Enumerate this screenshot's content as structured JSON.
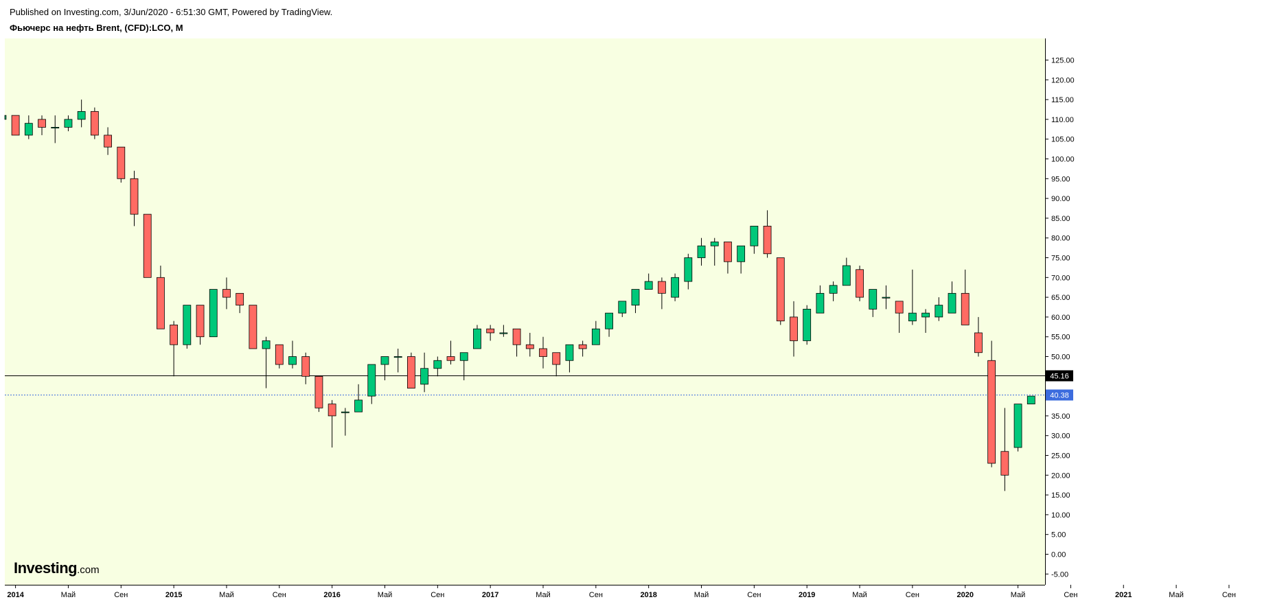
{
  "header": {
    "published": "Published on Investing.com, 3/Jun/2020 - 6:51:30 GMT, Powered by TradingView.",
    "instrument": "Фьючерс на нефть Brent, (CFD):LCO, M"
  },
  "logo": {
    "main": "Investing",
    "suffix": ".com"
  },
  "colors": {
    "background": "#f8ffe2",
    "up": "#00c87a",
    "down": "#ff6b63",
    "wick": "#000000",
    "hline_black": "#000000",
    "hline_blue": "#3c6cde"
  },
  "chart_data": {
    "type": "candlestick",
    "interval": "M",
    "ylim": [
      -7,
      133
    ],
    "x_tick_labels": [
      "2014",
      "Май",
      "Сен",
      "2015",
      "Май",
      "Сен",
      "2016",
      "Май",
      "Сен",
      "2017",
      "Май",
      "Сен",
      "2018",
      "Май",
      "Сен",
      "2019",
      "Май",
      "Сен",
      "2020",
      "Май",
      "Сен",
      "2021",
      "Май",
      "Сен"
    ],
    "y_tick_labels": [
      "125.00",
      "120.00",
      "115.00",
      "110.00",
      "105.00",
      "100.00",
      "95.00",
      "90.00",
      "85.00",
      "80.00",
      "75.00",
      "70.00",
      "65.00",
      "60.00",
      "55.00",
      "50.00",
      "45.00",
      "40.00",
      "35.00",
      "30.00",
      "25.00",
      "20.00",
      "15.00",
      "10.00",
      "5.00",
      "0.00",
      "-5.00"
    ],
    "price_lines": [
      {
        "label": "45.16",
        "value": 45.16,
        "style": "solid",
        "color": "#000000"
      },
      {
        "label": "40.38",
        "value": 40.38,
        "style": "dotted",
        "color": "#3c6cde"
      }
    ],
    "candles": [
      {
        "t": "2013-12",
        "o": 110,
        "h": 111,
        "l": 109,
        "c": 111
      },
      {
        "t": "2014-01",
        "o": 111,
        "h": 111,
        "l": 106,
        "c": 106
      },
      {
        "t": "2014-02",
        "o": 106,
        "h": 111,
        "l": 105,
        "c": 109
      },
      {
        "t": "2014-03",
        "o": 110,
        "h": 111,
        "l": 106,
        "c": 108
      },
      {
        "t": "2014-04",
        "o": 108,
        "h": 111,
        "l": 104,
        "c": 108
      },
      {
        "t": "2014-05",
        "o": 108,
        "h": 111,
        "l": 107,
        "c": 110
      },
      {
        "t": "2014-06",
        "o": 110,
        "h": 115,
        "l": 108,
        "c": 112
      },
      {
        "t": "2014-07",
        "o": 112,
        "h": 113,
        "l": 105,
        "c": 106
      },
      {
        "t": "2014-08",
        "o": 106,
        "h": 108,
        "l": 101,
        "c": 103
      },
      {
        "t": "2014-09",
        "o": 103,
        "h": 103,
        "l": 94,
        "c": 95
      },
      {
        "t": "2014-10",
        "o": 95,
        "h": 97,
        "l": 83,
        "c": 86
      },
      {
        "t": "2014-11",
        "o": 86,
        "h": 86,
        "l": 70,
        "c": 70
      },
      {
        "t": "2014-12",
        "o": 70,
        "h": 73,
        "l": 57,
        "c": 57
      },
      {
        "t": "2015-01",
        "o": 58,
        "h": 59,
        "l": 45,
        "c": 53
      },
      {
        "t": "2015-02",
        "o": 53,
        "h": 63,
        "l": 52,
        "c": 63
      },
      {
        "t": "2015-03",
        "o": 63,
        "h": 63,
        "l": 53,
        "c": 55
      },
      {
        "t": "2015-04",
        "o": 55,
        "h": 67,
        "l": 55,
        "c": 67
      },
      {
        "t": "2015-05",
        "o": 67,
        "h": 70,
        "l": 62,
        "c": 65
      },
      {
        "t": "2015-06",
        "o": 66,
        "h": 66,
        "l": 61,
        "c": 63
      },
      {
        "t": "2015-07",
        "o": 63,
        "h": 63,
        "l": 52,
        "c": 52
      },
      {
        "t": "2015-08",
        "o": 52,
        "h": 55,
        "l": 42,
        "c": 54
      },
      {
        "t": "2015-09",
        "o": 53,
        "h": 53,
        "l": 47,
        "c": 48
      },
      {
        "t": "2015-10",
        "o": 48,
        "h": 54,
        "l": 47,
        "c": 50
      },
      {
        "t": "2015-11",
        "o": 50,
        "h": 51,
        "l": 43,
        "c": 45
      },
      {
        "t": "2015-12",
        "o": 45,
        "h": 45,
        "l": 36,
        "c": 37
      },
      {
        "t": "2016-01",
        "o": 38,
        "h": 39,
        "l": 27,
        "c": 35
      },
      {
        "t": "2016-02",
        "o": 36,
        "h": 37,
        "l": 30,
        "c": 36
      },
      {
        "t": "2016-03",
        "o": 36,
        "h": 43,
        "l": 36,
        "c": 39
      },
      {
        "t": "2016-04",
        "o": 40,
        "h": 48,
        "l": 38,
        "c": 48
      },
      {
        "t": "2016-05",
        "o": 48,
        "h": 50,
        "l": 44,
        "c": 50
      },
      {
        "t": "2016-06",
        "o": 50,
        "h": 52,
        "l": 46,
        "c": 50
      },
      {
        "t": "2016-07",
        "o": 50,
        "h": 51,
        "l": 42,
        "c": 42
      },
      {
        "t": "2016-08",
        "o": 43,
        "h": 51,
        "l": 41,
        "c": 47
      },
      {
        "t": "2016-09",
        "o": 47,
        "h": 50,
        "l": 45,
        "c": 49
      },
      {
        "t": "2016-10",
        "o": 50,
        "h": 54,
        "l": 48,
        "c": 49
      },
      {
        "t": "2016-11",
        "o": 49,
        "h": 50,
        "l": 44,
        "c": 51
      },
      {
        "t": "2016-12",
        "o": 52,
        "h": 58,
        "l": 52,
        "c": 57
      },
      {
        "t": "2017-01",
        "o": 57,
        "h": 58,
        "l": 54,
        "c": 56
      },
      {
        "t": "2017-02",
        "o": 56,
        "h": 58,
        "l": 55,
        "c": 56
      },
      {
        "t": "2017-03",
        "o": 57,
        "h": 57,
        "l": 50,
        "c": 53
      },
      {
        "t": "2017-04",
        "o": 53,
        "h": 56,
        "l": 50,
        "c": 52
      },
      {
        "t": "2017-05",
        "o": 52,
        "h": 55,
        "l": 47,
        "c": 50
      },
      {
        "t": "2017-06",
        "o": 51,
        "h": 51,
        "l": 45,
        "c": 48
      },
      {
        "t": "2017-07",
        "o": 49,
        "h": 53,
        "l": 46,
        "c": 53
      },
      {
        "t": "2017-08",
        "o": 53,
        "h": 54,
        "l": 50,
        "c": 52
      },
      {
        "t": "2017-09",
        "o": 53,
        "h": 59,
        "l": 53,
        "c": 57
      },
      {
        "t": "2017-10",
        "o": 57,
        "h": 61,
        "l": 55,
        "c": 61
      },
      {
        "t": "2017-11",
        "o": 61,
        "h": 64,
        "l": 60,
        "c": 64
      },
      {
        "t": "2017-12",
        "o": 63,
        "h": 67,
        "l": 61,
        "c": 67
      },
      {
        "t": "2018-01",
        "o": 67,
        "h": 71,
        "l": 67,
        "c": 69
      },
      {
        "t": "2018-02",
        "o": 69,
        "h": 70,
        "l": 62,
        "c": 66
      },
      {
        "t": "2018-03",
        "o": 65,
        "h": 71,
        "l": 64,
        "c": 70
      },
      {
        "t": "2018-04",
        "o": 69,
        "h": 76,
        "l": 67,
        "c": 75
      },
      {
        "t": "2018-05",
        "o": 75,
        "h": 80,
        "l": 73,
        "c": 78
      },
      {
        "t": "2018-06",
        "o": 78,
        "h": 80,
        "l": 73,
        "c": 79
      },
      {
        "t": "2018-07",
        "o": 79,
        "h": 79,
        "l": 71,
        "c": 74
      },
      {
        "t": "2018-08",
        "o": 74,
        "h": 78,
        "l": 71,
        "c": 78
      },
      {
        "t": "2018-09",
        "o": 78,
        "h": 83,
        "l": 76,
        "c": 83
      },
      {
        "t": "2018-10",
        "o": 83,
        "h": 87,
        "l": 75,
        "c": 76
      },
      {
        "t": "2018-11",
        "o": 75,
        "h": 75,
        "l": 58,
        "c": 59
      },
      {
        "t": "2018-12",
        "o": 60,
        "h": 64,
        "l": 50,
        "c": 54
      },
      {
        "t": "2019-01",
        "o": 54,
        "h": 63,
        "l": 53,
        "c": 62
      },
      {
        "t": "2019-02",
        "o": 61,
        "h": 68,
        "l": 61,
        "c": 66
      },
      {
        "t": "2019-03",
        "o": 66,
        "h": 69,
        "l": 64,
        "c": 68
      },
      {
        "t": "2019-04",
        "o": 68,
        "h": 75,
        "l": 68,
        "c": 73
      },
      {
        "t": "2019-05",
        "o": 72,
        "h": 73,
        "l": 64,
        "c": 65
      },
      {
        "t": "2019-06",
        "o": 62,
        "h": 67,
        "l": 60,
        "c": 67
      },
      {
        "t": "2019-07",
        "o": 65,
        "h": 68,
        "l": 62,
        "c": 65
      },
      {
        "t": "2019-08",
        "o": 64,
        "h": 64,
        "l": 56,
        "c": 61
      },
      {
        "t": "2019-09",
        "o": 59,
        "h": 72,
        "l": 58,
        "c": 61
      },
      {
        "t": "2019-10",
        "o": 60,
        "h": 62,
        "l": 56,
        "c": 61
      },
      {
        "t": "2019-11",
        "o": 60,
        "h": 65,
        "l": 59,
        "c": 63
      },
      {
        "t": "2019-12",
        "o": 61,
        "h": 69,
        "l": 61,
        "c": 66
      },
      {
        "t": "2020-01",
        "o": 66,
        "h": 72,
        "l": 58,
        "c": 58
      },
      {
        "t": "2020-02",
        "o": 56,
        "h": 60,
        "l": 50,
        "c": 51
      },
      {
        "t": "2020-03",
        "o": 49,
        "h": 54,
        "l": 22,
        "c": 23
      },
      {
        "t": "2020-04",
        "o": 26,
        "h": 37,
        "l": 16,
        "c": 20
      },
      {
        "t": "2020-05",
        "o": 27,
        "h": 38,
        "l": 26,
        "c": 38
      },
      {
        "t": "2020-06",
        "o": 38,
        "h": 40,
        "l": 38,
        "c": 40
      }
    ]
  }
}
